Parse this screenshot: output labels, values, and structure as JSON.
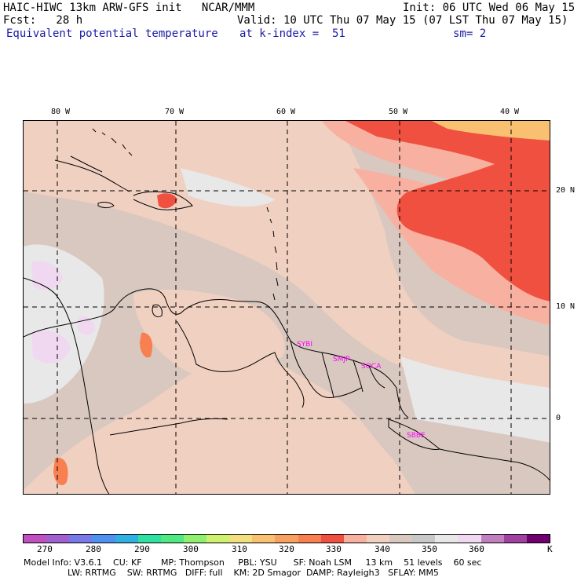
{
  "header": {
    "line1_left": "HAIC-HIWC 13km ARW-GFS init   NCAR/MMM",
    "line1_right": "Init: 06 UTC Wed 06 May 15",
    "line2_left": "Fcst:   28 h",
    "line2_right": "Valid: 10 UTC Thu 07 May 15 (07 LST Thu 07 May 15)",
    "line3_left": "Equivalent potential temperature",
    "line3_mid": "at k-index =  51",
    "line3_right": "sm= 2"
  },
  "longitude_labels": [
    "80 W",
    "70 W",
    "60 W",
    "50 W",
    "40 W"
  ],
  "latitude_labels": [
    "20 N",
    "10 N",
    "0"
  ],
  "stations": [
    "SYBI",
    "SMJP",
    "SOCA",
    "SBBE"
  ],
  "colorbar": {
    "colors": [
      "#c050c0",
      "#a060d0",
      "#7878e8",
      "#5090f0",
      "#30b0e0",
      "#30e0a0",
      "#50e880",
      "#90f070",
      "#d0f070",
      "#f0e080",
      "#f8c070",
      "#f8a060",
      "#f88050",
      "#f05040",
      "#f8b0a0",
      "#f0d0c0",
      "#d8c8c0",
      "#c8c8c8",
      "#e8e8e8",
      "#f0d8f0",
      "#c080c0",
      "#a040a0",
      "#700070"
    ],
    "labels": [
      "270",
      "280",
      "290",
      "300",
      "310",
      "320",
      "330",
      "340",
      "350",
      "360"
    ],
    "unit": "K"
  },
  "footer": {
    "line1": "Model Info: V3.6.1    CU: KF       MP: Thompson     PBL: YSU      SF: Noah LSM     13 km    51 levels    60 sec",
    "line2": "                LW: RRTMG    SW: RRTMG   DIFF: full    KM: 2D Smagor  DAMP: Rayleigh3   SFLAY: MM5"
  }
}
